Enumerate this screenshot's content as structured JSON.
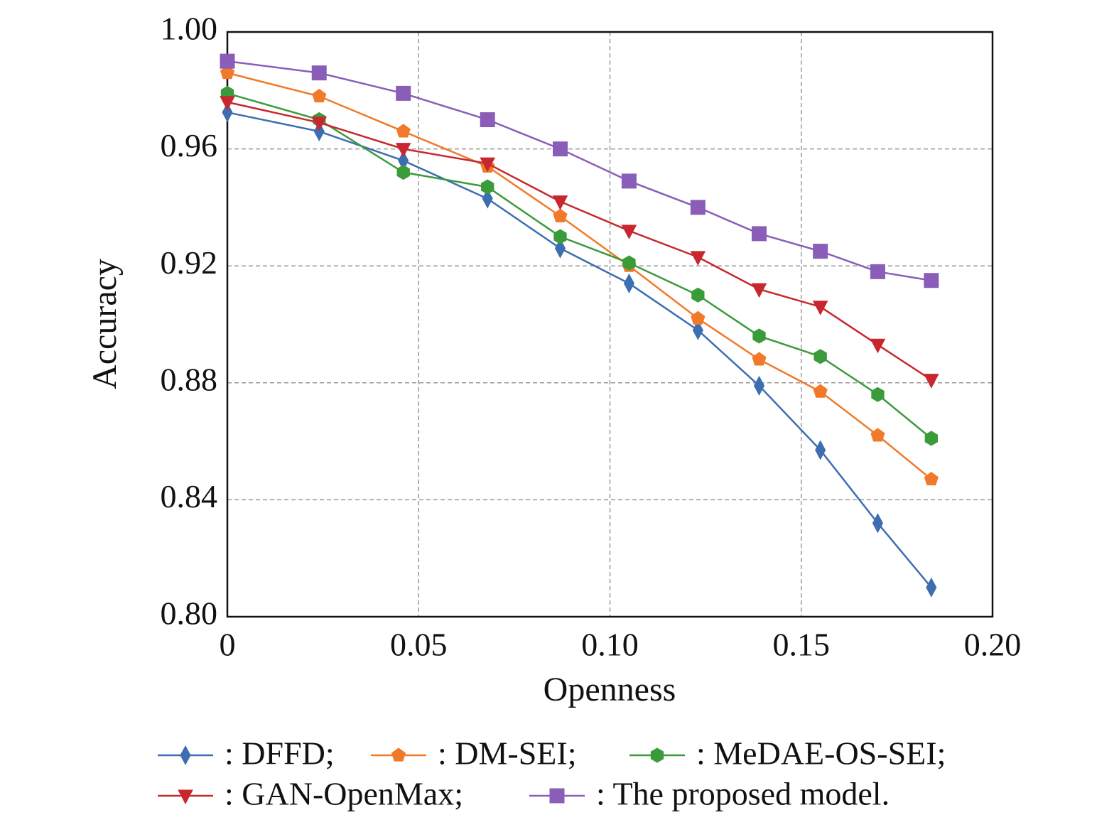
{
  "chart_data": {
    "type": "line",
    "x_label": "Openness",
    "y_label": "Accuracy",
    "x": [
      0,
      0.024,
      0.046,
      0.068,
      0.087,
      0.105,
      0.123,
      0.139,
      0.155,
      0.17,
      0.184
    ],
    "xlim": [
      0,
      0.2
    ],
    "xticks": [
      0,
      0.05,
      {
        "value": 0.1,
        "label": "0.10"
      },
      0.15,
      {
        "value": 0.2,
        "label": "0.20"
      }
    ],
    "ylim": [
      0.8,
      1.0
    ],
    "yticks": [
      {
        "value": 0.8,
        "label": "0.80"
      },
      0.84,
      0.88,
      0.92,
      0.96,
      {
        "value": 1.0,
        "label": "1.00"
      }
    ],
    "grid": true,
    "series": [
      {
        "name": ": DFFD;",
        "color": "#3d6eb1",
        "marker": "diamond",
        "values": [
          0.9725,
          0.966,
          0.956,
          0.943,
          0.926,
          0.914,
          0.898,
          0.879,
          0.857,
          0.832,
          0.81
        ]
      },
      {
        "name": ": DM-SEI;",
        "color": "#f07a2a",
        "marker": "pentagon",
        "values": [
          0.986,
          0.978,
          0.966,
          0.954,
          0.937,
          0.92,
          0.902,
          0.888,
          0.877,
          0.862,
          0.847
        ]
      },
      {
        "name": ": MeDAE-OS-SEI;",
        "color": "#3b9b3b",
        "marker": "hexagon",
        "values": [
          0.979,
          0.97,
          0.952,
          0.947,
          0.93,
          0.921,
          0.91,
          0.896,
          0.889,
          0.876,
          0.861
        ]
      },
      {
        "name": ": GAN-OpenMax;",
        "color": "#c7282f",
        "marker": "triangle-down",
        "values": [
          0.976,
          0.969,
          0.96,
          0.955,
          0.942,
          0.932,
          0.923,
          0.912,
          0.906,
          0.893,
          0.881
        ]
      },
      {
        "name": ": The proposed model.",
        "color": "#8a5db9",
        "marker": "square",
        "values": [
          0.99,
          0.986,
          0.979,
          0.97,
          0.96,
          0.949,
          0.94,
          0.931,
          0.925,
          0.918,
          0.915
        ]
      }
    ]
  }
}
